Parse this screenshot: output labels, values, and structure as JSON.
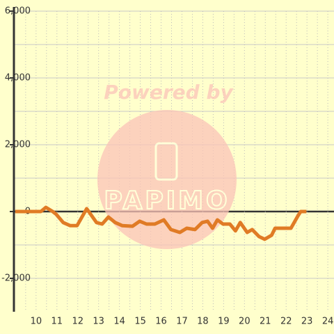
{
  "chart_data": {
    "type": "line",
    "watermark": [
      "Powered by",
      "PAPIMO"
    ],
    "x": [
      9.0,
      10.23,
      10.47,
      10.8,
      10.97,
      11.3,
      11.63,
      11.97,
      12.43,
      12.9,
      13.17,
      13.47,
      13.8,
      14.13,
      14.63,
      14.97,
      15.3,
      15.7,
      16.13,
      16.47,
      16.9,
      17.23,
      17.63,
      17.97,
      18.23,
      18.47,
      18.7,
      18.97,
      19.3,
      19.57,
      19.8,
      20.13,
      20.37,
      20.7,
      20.97,
      21.3,
      21.47,
      21.97,
      22.23,
      22.57,
      22.7,
      22.97
    ],
    "series": [
      {
        "color": "#e07b25",
        "values": [
          0,
          0,
          125,
          0,
          -85,
          -330,
          -420,
          -420,
          85,
          -330,
          -375,
          -165,
          -330,
          -420,
          -440,
          -290,
          -375,
          -375,
          -250,
          -540,
          -625,
          -500,
          -540,
          -330,
          -290,
          -500,
          -250,
          -375,
          -375,
          -580,
          -330,
          -625,
          -540,
          -750,
          -830,
          -710,
          -500,
          -500,
          -500,
          -125,
          0,
          0
        ]
      }
    ],
    "xlim": [
      8.97,
      24.33
    ],
    "xticks": [
      10,
      11,
      12,
      13,
      14,
      15,
      16,
      17,
      18,
      19,
      20,
      21,
      22,
      23,
      24
    ],
    "xminorticks": [
      9.5,
      10.5,
      11.5,
      12.5,
      13.5,
      14.5,
      15.5,
      16.5,
      17.5,
      18.5,
      19.5,
      20.5,
      21.5,
      22.5,
      23.5
    ],
    "ylim": [
      -3000,
      6000
    ],
    "yticks": [
      {
        "value": -2000,
        "label": "-2,000"
      },
      0,
      {
        "value": 2000,
        "label": "2,000"
      },
      {
        "value": 4000,
        "label": "4,000"
      },
      {
        "value": 6000,
        "label": "6,000"
      }
    ],
    "yminorticks": [
      -1000,
      1000,
      3000,
      5000
    ],
    "grid": true
  }
}
